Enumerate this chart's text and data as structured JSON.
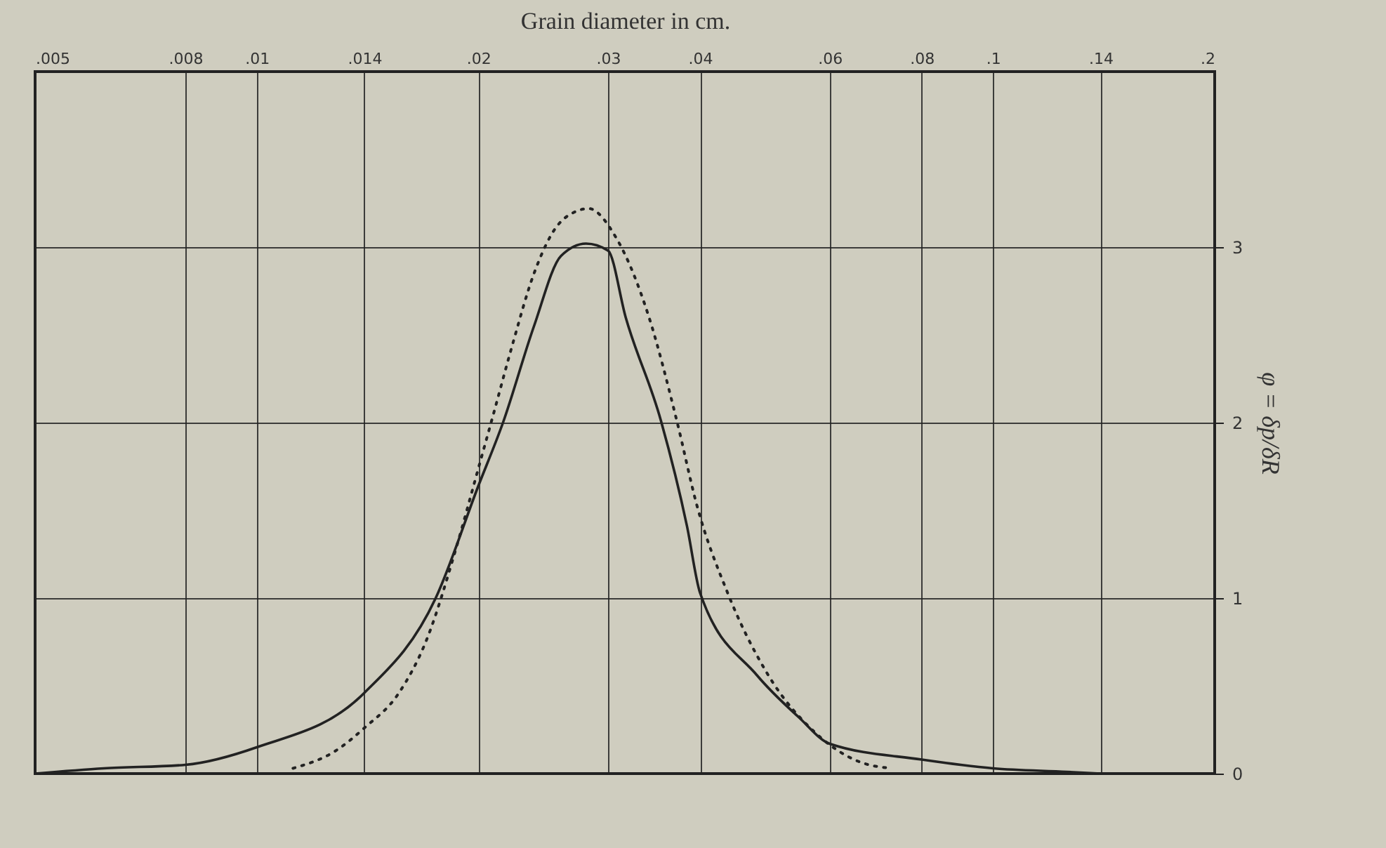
{
  "chart_data": {
    "type": "line",
    "xlabel": "Grain diameter in cm.",
    "ylabel": "φ = δp/δR",
    "log": "x",
    "grid": true,
    "xlim": [
      0.005,
      0.2
    ],
    "xticks": [
      {
        "value": 0.005,
        "label": ".005"
      },
      {
        "value": 0.008,
        "label": ".008"
      },
      {
        "value": 0.01,
        "label": ".01"
      },
      {
        "value": 0.014,
        "label": ".014"
      },
      {
        "value": 0.02,
        "label": ".02"
      },
      {
        "value": 0.03,
        "label": ".03"
      },
      {
        "value": 0.04,
        "label": ".04"
      },
      {
        "value": 0.06,
        "label": ".06"
      },
      {
        "value": 0.08,
        "label": ".08"
      },
      {
        "value": 0.1,
        "label": ".1"
      },
      {
        "value": 0.14,
        "label": ".14"
      },
      {
        "value": 0.2,
        "label": ".2"
      }
    ],
    "ylim": [
      0,
      4
    ],
    "yticks": [
      0,
      1,
      2,
      3
    ],
    "series": [
      {
        "color": "#222222",
        "line_style": "solid",
        "x": [
          0.005,
          0.0062,
          0.008,
          0.01,
          0.014,
          0.0175,
          0.02,
          0.0216,
          0.0238,
          0.0259,
          0.028,
          0.03,
          0.0317,
          0.0354,
          0.0384,
          0.04,
          0.0478,
          0.0545,
          0.06,
          0.08,
          0.1,
          0.126,
          0.14
        ],
        "values": [
          0,
          0.03,
          0.05,
          0.15,
          0.46,
          1.0,
          1.64,
          2.0,
          2.55,
          2.95,
          3.02,
          2.98,
          2.6,
          2.01,
          1.41,
          1.03,
          0.56,
          0.32,
          0.17,
          0.08,
          0.03,
          0.01,
          0
        ]
      },
      {
        "color": "#222222",
        "line_style": "dotted",
        "x": [
          0.0112,
          0.0128,
          0.014,
          0.0156,
          0.017,
          0.0187,
          0.02,
          0.021,
          0.0222,
          0.0238,
          0.0252,
          0.0274,
          0.0282,
          0.0308,
          0.0341,
          0.0372,
          0.0396,
          0.0436,
          0.0492,
          0.0578,
          0.0656,
          0.0727
        ],
        "values": [
          0.03,
          0.13,
          0.26,
          0.46,
          0.76,
          1.3,
          1.74,
          2.06,
          2.43,
          2.85,
          3.08,
          3.21,
          3.22,
          3.05,
          2.6,
          2.01,
          1.53,
          1.03,
          0.58,
          0.22,
          0.07,
          0.03
        ]
      }
    ]
  }
}
